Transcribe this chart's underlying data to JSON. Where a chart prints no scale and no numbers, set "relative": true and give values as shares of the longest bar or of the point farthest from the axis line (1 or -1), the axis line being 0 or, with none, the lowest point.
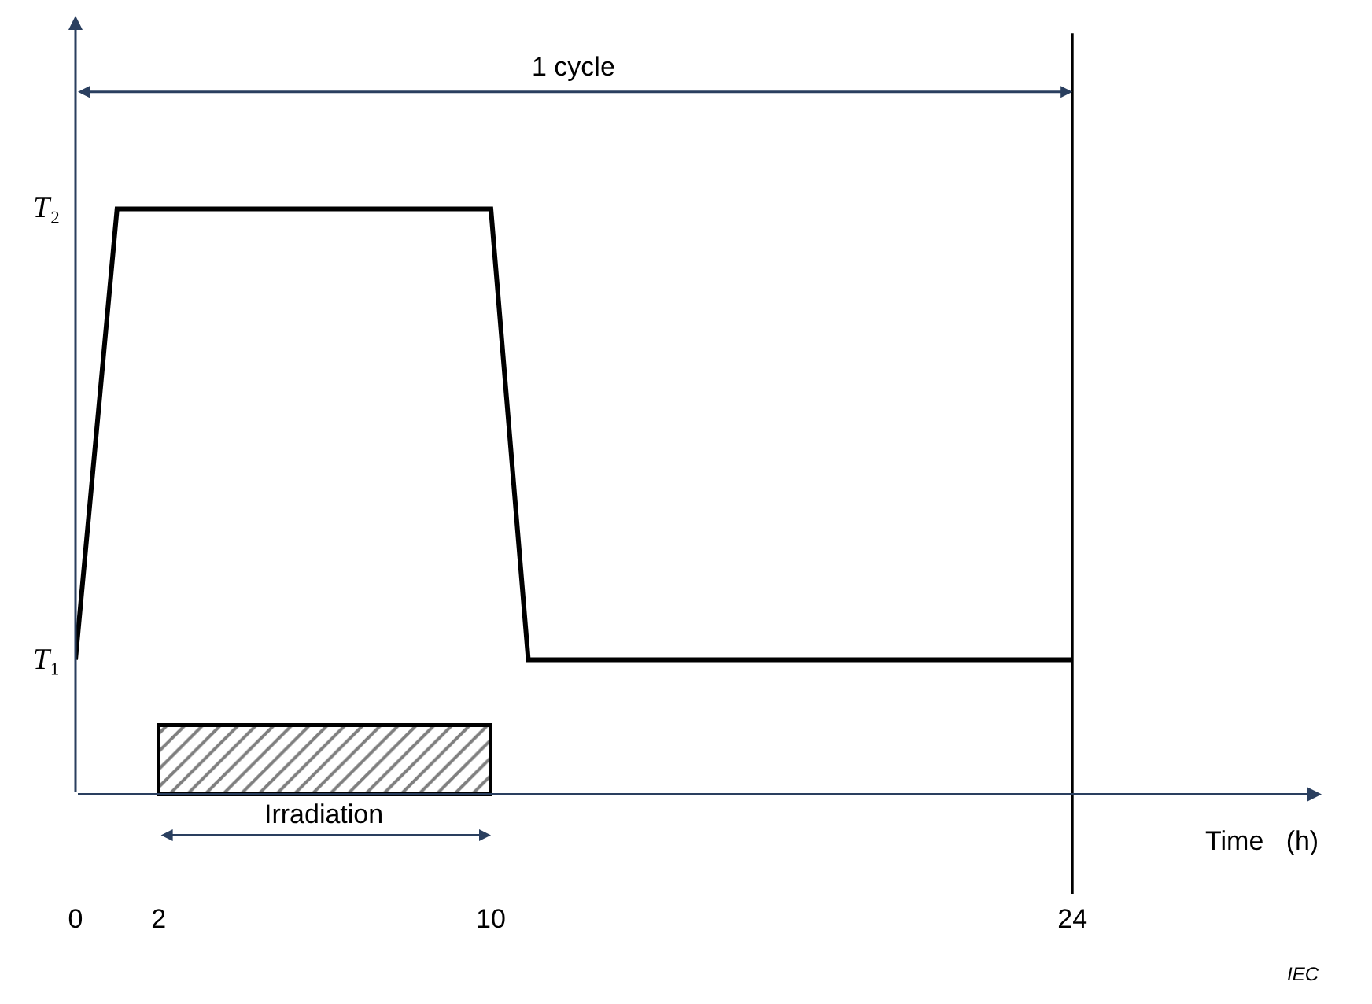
{
  "chart_data": {
    "type": "line",
    "relative": true,
    "xlabel": "Time   (h)",
    "xlim": [
      0,
      30
    ],
    "xticks": [
      0,
      2,
      10,
      24
    ],
    "tick_labels": "x",
    "marker": "none",
    "line_style": "solid",
    "series": [
      {
        "color": "#000000",
        "x": [
          0,
          1,
          10,
          10.9,
          24
        ],
        "values": [
          0.23,
          1,
          1,
          0.23,
          0.23
        ]
      }
    ],
    "ref_lines": [
      {
        "axis": "x",
        "value": 24,
        "color": "#000000"
      }
    ],
    "bands": [
      {
        "axis": "x",
        "from": 2,
        "to": 10,
        "label": "Irradiation",
        "color": "#000000"
      }
    ],
    "annotations": [
      "T₁",
      "T₂",
      "1 cycle",
      "IEC"
    ]
  }
}
